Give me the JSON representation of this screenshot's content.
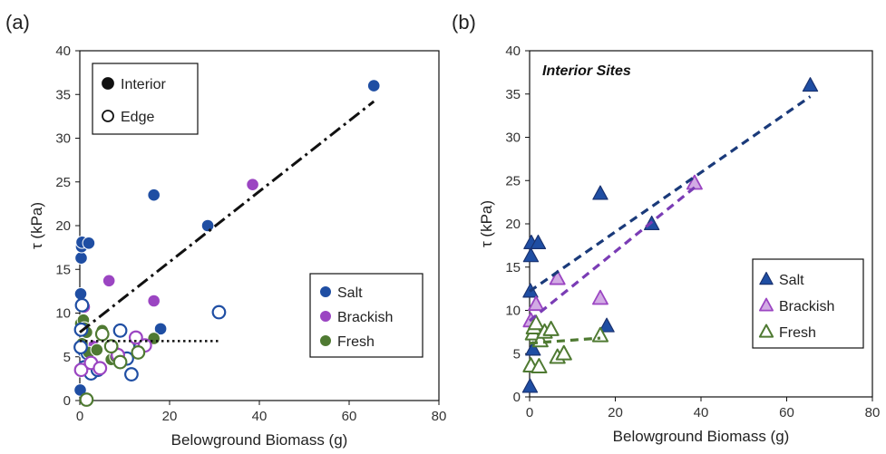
{
  "chart_data": [
    {
      "type": "scatter",
      "panel_label": "(a)",
      "xlabel": "Belowground Biomass (g)",
      "ylabel": "τ (kPa)",
      "xlim": [
        0,
        80
      ],
      "ylim": [
        0,
        40
      ],
      "xticks": [
        "0",
        "20",
        "40",
        "60",
        "80"
      ],
      "yticks": [
        "0",
        "5",
        "10",
        "15",
        "20",
        "25",
        "30",
        "35",
        "40"
      ],
      "marker_legend": [
        {
          "label": "Interior",
          "fill": "filled"
        },
        {
          "label": "Edge",
          "fill": "hollow"
        }
      ],
      "color_legend": [
        {
          "label": "Salt",
          "color": "#1f4ea3"
        },
        {
          "label": "Brackish",
          "color": "#9b45c2"
        },
        {
          "label": "Fresh",
          "color": "#4f7a32"
        }
      ],
      "series": [
        {
          "name": "Salt",
          "marker": "Interior",
          "color": "#1f4ea3",
          "points": [
            [
              0.1,
              1.2
            ],
            [
              0.2,
              12.2
            ],
            [
              0.3,
              16.3
            ],
            [
              0.4,
              17.6
            ],
            [
              0.5,
              18.1
            ],
            [
              0.8,
              5.6
            ],
            [
              1.5,
              5.3
            ],
            [
              2,
              18
            ],
            [
              16.5,
              23.5
            ],
            [
              18,
              8.2
            ],
            [
              28.5,
              20
            ],
            [
              65.5,
              36
            ]
          ]
        },
        {
          "name": "Brackish",
          "marker": "Interior",
          "color": "#9b45c2",
          "points": [
            [
              0.1,
              3.4
            ],
            [
              1,
              10.7
            ],
            [
              3,
              6.2
            ],
            [
              6.5,
              13.7
            ],
            [
              8,
              5.5
            ],
            [
              16.5,
              11.4
            ],
            [
              38.5,
              24.7
            ]
          ]
        },
        {
          "name": "Fresh",
          "marker": "Interior",
          "color": "#4f7a32",
          "points": [
            [
              0.2,
              8.8
            ],
            [
              0.3,
              3.5
            ],
            [
              0.5,
              6.5
            ],
            [
              0.8,
              9.2
            ],
            [
              1,
              8.3
            ],
            [
              1.5,
              7.8
            ],
            [
              2,
              5.5
            ],
            [
              2.8,
              4.3
            ],
            [
              3.8,
              5.8
            ],
            [
              5,
              8
            ],
            [
              7,
              4.7
            ],
            [
              8,
              5
            ],
            [
              13,
              6.6
            ],
            [
              16.5,
              7.1
            ]
          ]
        },
        {
          "name": "Salt",
          "marker": "Edge",
          "color": "#1f4ea3",
          "points": [
            [
              0.2,
              6.1
            ],
            [
              0.3,
              8.1
            ],
            [
              0.5,
              10.9
            ],
            [
              1,
              3.8
            ],
            [
              2.5,
              3.1
            ],
            [
              4,
              3.5
            ],
            [
              9,
              8
            ],
            [
              10.5,
              4.8
            ],
            [
              11.5,
              3
            ],
            [
              13.5,
              6.1
            ],
            [
              31,
              10.1
            ]
          ]
        },
        {
          "name": "Brackish",
          "marker": "Edge",
          "color": "#9b45c2",
          "points": [
            [
              0.3,
              3.5
            ],
            [
              2.5,
              4.3
            ],
            [
              4.5,
              3.7
            ],
            [
              8.5,
              5.2
            ],
            [
              12.5,
              7.2
            ],
            [
              14.5,
              6.3
            ]
          ]
        },
        {
          "name": "Fresh",
          "marker": "Edge",
          "color": "#4f7a32",
          "points": [
            [
              1.5,
              0.1
            ],
            [
              5,
              7.6
            ],
            [
              7,
              6.2
            ],
            [
              9,
              4.4
            ],
            [
              13,
              5.5
            ]
          ]
        }
      ],
      "trendlines": [
        {
          "style": "dash-dot",
          "color": "#111111",
          "x": [
            0,
            65.5
          ],
          "y": [
            7.8,
            34.2
          ]
        },
        {
          "style": "dotted",
          "color": "#111111",
          "x": [
            0,
            31
          ],
          "y": [
            6.8,
            6.8
          ]
        }
      ]
    },
    {
      "type": "scatter",
      "panel_label": "(b)",
      "inner_title": "Interior Sites",
      "xlabel": "Belowground Biomass (g)",
      "ylabel": "τ (kPa)",
      "xlim": [
        0,
        80
      ],
      "ylim": [
        0,
        40
      ],
      "xticks": [
        "0",
        "20",
        "40",
        "60",
        "80"
      ],
      "yticks": [
        "0",
        "5",
        "10",
        "15",
        "20",
        "25",
        "30",
        "35",
        "40"
      ],
      "color_legend": [
        {
          "label": "Salt",
          "color": "#1f4ea3",
          "fill": "filled"
        },
        {
          "label": "Brackish",
          "color": "#9b45c2",
          "fill": "light"
        },
        {
          "label": "Fresh",
          "color": "#4f7a32",
          "fill": "hollow"
        }
      ],
      "series": [
        {
          "name": "Salt",
          "color": "#1f4ea3",
          "fill": "filled",
          "points": [
            [
              0.1,
              1.2
            ],
            [
              0.2,
              12.2
            ],
            [
              0.3,
              16.3
            ],
            [
              0.4,
              17.8
            ],
            [
              0.8,
              5.5
            ],
            [
              2,
              17.8
            ],
            [
              16.5,
              23.5
            ],
            [
              18,
              8.2
            ],
            [
              28.5,
              20
            ],
            [
              65.5,
              36
            ]
          ]
        },
        {
          "name": "Brackish",
          "color": "#9b45c2",
          "fill": "light",
          "points": [
            [
              0.3,
              8.8
            ],
            [
              1.5,
              10.7
            ],
            [
              6.5,
              13.7
            ],
            [
              16.5,
              11.4
            ],
            [
              38.5,
              24.7
            ]
          ]
        },
        {
          "name": "Fresh",
          "color": "#4f7a32",
          "fill": "hollow",
          "points": [
            [
              0.3,
              3.6
            ],
            [
              0.8,
              7.3
            ],
            [
              1,
              8
            ],
            [
              1.5,
              8.5
            ],
            [
              2.2,
              3.5
            ],
            [
              2.5,
              6.5
            ],
            [
              3.5,
              7.5
            ],
            [
              5,
              7.8
            ],
            [
              6.5,
              4.6
            ],
            [
              8,
              5
            ],
            [
              16.5,
              7.1
            ]
          ]
        }
      ],
      "trendlines": [
        {
          "style": "dashed",
          "color": "#1a3a7a",
          "x": [
            0,
            65.5
          ],
          "y": [
            12.2,
            34.7
          ]
        },
        {
          "style": "dashed",
          "color": "#7a3cb5",
          "x": [
            0,
            38.5
          ],
          "y": [
            8.8,
            24.2
          ]
        },
        {
          "style": "dashed",
          "color": "#4f7a32",
          "x": [
            0,
            16.5
          ],
          "y": [
            6.2,
            6.8
          ]
        }
      ]
    }
  ]
}
